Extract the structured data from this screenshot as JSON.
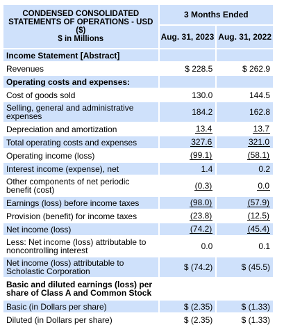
{
  "header": {
    "title_line1": "CONDENSED CONSOLIDATED",
    "title_line2": "STATEMENTS OF OPERATIONS - USD",
    "title_line3": "($)",
    "title_line4": "$ in Millions",
    "period_label": "3 Months Ended",
    "col1": "Aug. 31, 2023",
    "col2": "Aug. 31, 2022"
  },
  "rows": [
    {
      "label": "Income Statement [Abstract]",
      "v1": "",
      "v2": ""
    },
    {
      "label": "Revenues",
      "v1": "$ 228.5",
      "v2": "$ 262.9"
    },
    {
      "label": "Operating costs and expenses:",
      "v1": "",
      "v2": ""
    },
    {
      "label": "Cost of goods sold",
      "v1": "130.0",
      "v2": "144.5"
    },
    {
      "label": "Selling, general and administrative expenses",
      "v1": "184.2",
      "v2": "162.8"
    },
    {
      "label": "Depreciation and amortization",
      "v1": "13.4",
      "v2": "13.7"
    },
    {
      "label": "Total operating costs and expenses",
      "v1": "327.6",
      "v2": "321.0"
    },
    {
      "label": "Operating income (loss)",
      "v1": "(99.1)",
      "v2": "(58.1)"
    },
    {
      "label": "Interest income (expense), net",
      "v1": "1.4",
      "v2": "0.2"
    },
    {
      "label": "Other components of net periodic benefit (cost)",
      "v1": "(0.3)",
      "v2": "0.0"
    },
    {
      "label": "Earnings (loss) before income taxes",
      "v1": "(98.0)",
      "v2": "(57.9)"
    },
    {
      "label": "Provision (benefit) for income taxes",
      "v1": "(23.8)",
      "v2": "(12.5)"
    },
    {
      "label": "Net income (loss)",
      "v1": "(74.2)",
      "v2": "(45.4)"
    },
    {
      "label": "Less: Net income (loss) attributable to noncontrolling interest",
      "v1": "0.0",
      "v2": "0.1"
    },
    {
      "label": "Net income (loss) attributable to Scholastic Corporation",
      "v1": "$ (74.2)",
      "v2": "$ (45.5)"
    },
    {
      "label": "Basic and diluted earnings (loss) per share of Class A and Common Stock",
      "v1": "",
      "v2": ""
    },
    {
      "label": "Basic (in Dollars per share)",
      "v1": "$ (2.35)",
      "v2": "$ (1.33)"
    },
    {
      "label": "Diluted (in Dollars per share)",
      "v1": "$ (2.35)",
      "v2": "$ (1.33)"
    }
  ]
}
